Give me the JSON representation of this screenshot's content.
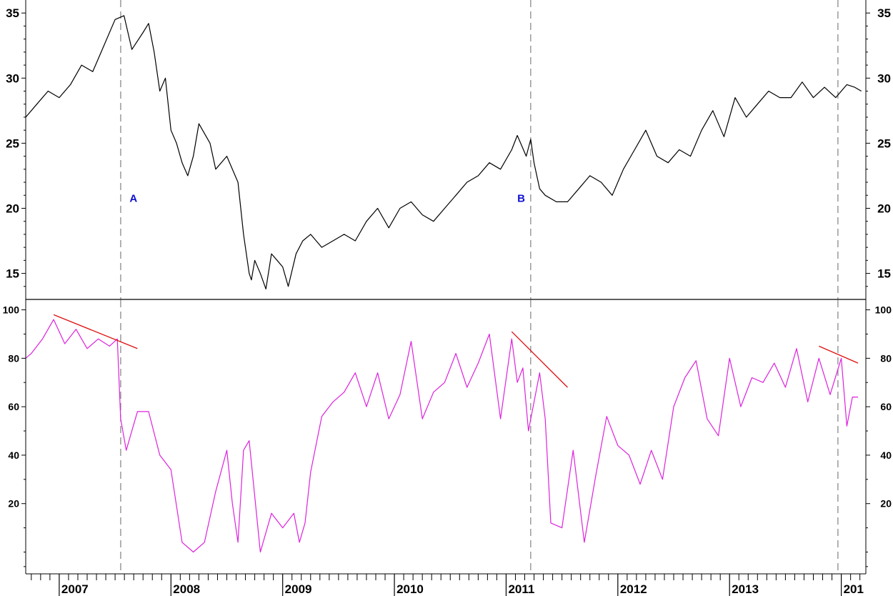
{
  "chart_data": [
    {
      "type": "line",
      "panel": "upper",
      "title": "",
      "xlabel": "",
      "ylabel": "",
      "ylim": [
        13,
        36
      ],
      "ytick_values": [
        15,
        20,
        25,
        30,
        35
      ],
      "x_ticks": [
        "2007",
        "2008",
        "2009",
        "2010",
        "2011",
        "2012",
        "2013",
        "201"
      ],
      "series": [
        {
          "color": "#000000",
          "x": [
            2006.7,
            2006.8,
            2006.9,
            2007.0,
            2007.1,
            2007.2,
            2007.3,
            2007.4,
            2007.5,
            2007.58,
            2007.65,
            2007.75,
            2007.8,
            2007.85,
            2007.9,
            2007.95,
            2008.0,
            2008.05,
            2008.1,
            2008.15,
            2008.2,
            2008.25,
            2008.35,
            2008.4,
            2008.5,
            2008.6,
            2008.65,
            2008.7,
            2008.72,
            2008.75,
            2008.8,
            2008.85,
            2008.9,
            2008.95,
            2009.0,
            2009.05,
            2009.12,
            2009.18,
            2009.25,
            2009.35,
            2009.45,
            2009.55,
            2009.65,
            2009.75,
            2009.85,
            2009.95,
            2010.05,
            2010.15,
            2010.25,
            2010.35,
            2010.45,
            2010.55,
            2010.65,
            2010.75,
            2010.85,
            2010.95,
            2011.05,
            2011.1,
            2011.18,
            2011.22,
            2011.25,
            2011.3,
            2011.35,
            2011.45,
            2011.55,
            2011.65,
            2011.75,
            2011.85,
            2011.95,
            2012.05,
            2012.15,
            2012.25,
            2012.35,
            2012.45,
            2012.55,
            2012.65,
            2012.75,
            2012.85,
            2012.95,
            2013.05,
            2013.15,
            2013.25,
            2013.35,
            2013.45,
            2013.55,
            2013.65,
            2013.75,
            2013.85,
            2013.95,
            2014.05,
            2014.12,
            2014.18
          ],
          "values": [
            27.0,
            28.0,
            29.0,
            28.5,
            29.5,
            31.0,
            30.5,
            32.5,
            34.5,
            34.8,
            32.2,
            33.5,
            34.2,
            32.0,
            29.0,
            30.0,
            26.0,
            25.0,
            23.5,
            22.5,
            24.0,
            26.5,
            25.0,
            23.0,
            24.0,
            22.0,
            18.0,
            15.0,
            14.5,
            16.0,
            15.0,
            13.8,
            16.5,
            16.0,
            15.5,
            14.0,
            16.5,
            17.5,
            18.0,
            17.0,
            17.5,
            18.0,
            17.5,
            19.0,
            20.0,
            18.5,
            20.0,
            20.5,
            19.5,
            19.0,
            20.0,
            21.0,
            22.0,
            22.5,
            23.5,
            23.0,
            24.5,
            25.6,
            24.0,
            25.3,
            23.5,
            21.5,
            21.0,
            20.5,
            20.5,
            21.5,
            22.5,
            22.0,
            21.0,
            23.0,
            24.5,
            26.0,
            24.0,
            23.5,
            24.5,
            24.0,
            26.0,
            27.5,
            25.5,
            28.5,
            27.0,
            28.0,
            29.0,
            28.5,
            28.5,
            29.7,
            28.5,
            29.3,
            28.5,
            29.5,
            29.3,
            29.0
          ]
        }
      ],
      "vertical_markers": [
        2007.55,
        2011.22,
        2013.97
      ],
      "annotations": [
        {
          "text": "A",
          "x": 2007.63,
          "y": 20.5
        },
        {
          "text": "B",
          "x": 2011.1,
          "y": 20.5
        }
      ]
    },
    {
      "type": "line",
      "panel": "lower",
      "title": "",
      "xlabel": "",
      "ylabel": "",
      "ylim": [
        -9,
        104
      ],
      "ytick_values": [
        20,
        40,
        60,
        80,
        100
      ],
      "x_ticks": [
        "2007",
        "2008",
        "2009",
        "2010",
        "2011",
        "2012",
        "2013",
        "201"
      ],
      "series": [
        {
          "color": "#dd22dd",
          "x": [
            2006.7,
            2006.75,
            2006.85,
            2006.95,
            2007.05,
            2007.15,
            2007.25,
            2007.35,
            2007.45,
            2007.52,
            2007.55,
            2007.6,
            2007.7,
            2007.8,
            2007.9,
            2008.0,
            2008.1,
            2008.2,
            2008.3,
            2008.4,
            2008.5,
            2008.55,
            2008.6,
            2008.65,
            2008.7,
            2008.8,
            2008.9,
            2009.0,
            2009.1,
            2009.15,
            2009.2,
            2009.25,
            2009.35,
            2009.45,
            2009.55,
            2009.65,
            2009.75,
            2009.85,
            2009.95,
            2010.05,
            2010.15,
            2010.25,
            2010.35,
            2010.45,
            2010.55,
            2010.65,
            2010.75,
            2010.85,
            2010.95,
            2011.05,
            2011.1,
            2011.15,
            2011.2,
            2011.3,
            2011.35,
            2011.4,
            2011.5,
            2011.6,
            2011.7,
            2011.8,
            2011.9,
            2012.0,
            2012.1,
            2012.2,
            2012.3,
            2012.4,
            2012.5,
            2012.6,
            2012.7,
            2012.8,
            2012.9,
            2013.0,
            2013.1,
            2013.2,
            2013.3,
            2013.4,
            2013.5,
            2013.6,
            2013.7,
            2013.8,
            2013.9,
            2014.0,
            2014.05,
            2014.1,
            2014.15
          ],
          "values": [
            80,
            82,
            88,
            96,
            86,
            92,
            84,
            88,
            85,
            88,
            55,
            42,
            58,
            58,
            40,
            34,
            4,
            0,
            4,
            25,
            42,
            20,
            4,
            42,
            46,
            0,
            16,
            10,
            16,
            4,
            12,
            33,
            56,
            62,
            66,
            74,
            60,
            74,
            55,
            65,
            87,
            55,
            66,
            70,
            82,
            68,
            78,
            90,
            55,
            88,
            70,
            76,
            50,
            74,
            55,
            12,
            10,
            42,
            4,
            31,
            56,
            44,
            40,
            28,
            42,
            30,
            60,
            72,
            79,
            55,
            48,
            80,
            60,
            72,
            70,
            78,
            68,
            84,
            62,
            80,
            65,
            80,
            52,
            64,
            64
          ]
        }
      ],
      "trendlines": [
        {
          "color": "#dd1111",
          "x": [
            2006.95,
            2007.7
          ],
          "values": [
            98,
            84
          ]
        },
        {
          "color": "#dd1111",
          "x": [
            2011.05,
            2011.55
          ],
          "values": [
            91,
            68
          ]
        },
        {
          "color": "#dd1111",
          "x": [
            2013.8,
            2014.15
          ],
          "values": [
            85,
            78
          ]
        }
      ],
      "vertical_markers": [
        2007.55,
        2011.22,
        2013.97
      ]
    }
  ]
}
